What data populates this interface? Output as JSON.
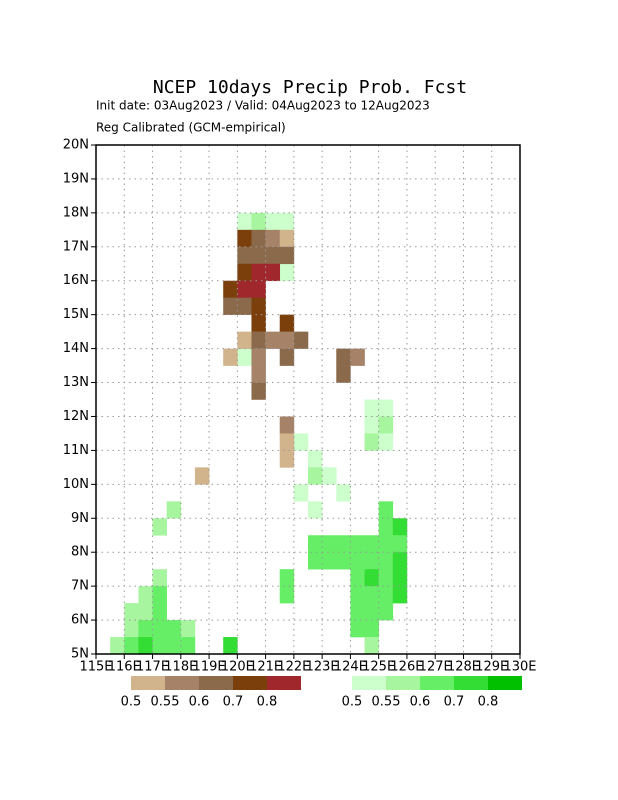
{
  "chart_data": {
    "type": "map",
    "title": "NCEP 10days Precip Prob. Fcst",
    "subtitle": "Init date: 03Aug2023 / Valid: 04Aug2023 to 12Aug2023",
    "method": "Reg Calibrated (GCM-empirical)",
    "xlim": [
      115,
      130
    ],
    "ylim": [
      5,
      20
    ],
    "grid": true,
    "xticks": [
      {
        "value": 115,
        "label": "115E"
      },
      {
        "value": 116,
        "label": "116E"
      },
      {
        "value": 117,
        "label": "117E"
      },
      {
        "value": 118,
        "label": "118E"
      },
      {
        "value": 119,
        "label": "119E"
      },
      {
        "value": 120,
        "label": "120E"
      },
      {
        "value": 121,
        "label": "121E"
      },
      {
        "value": 122,
        "label": "122E"
      },
      {
        "value": 123,
        "label": "123E"
      },
      {
        "value": 124,
        "label": "124E"
      },
      {
        "value": 125,
        "label": "125E"
      },
      {
        "value": 126,
        "label": "126E"
      },
      {
        "value": 127,
        "label": "127E"
      },
      {
        "value": 128,
        "label": "128E"
      },
      {
        "value": 129,
        "label": "129E"
      },
      {
        "value": 130,
        "label": "130E"
      }
    ],
    "yticks": [
      {
        "value": 5,
        "label": "5N"
      },
      {
        "value": 6,
        "label": "6N"
      },
      {
        "value": 7,
        "label": "7N"
      },
      {
        "value": 8,
        "label": "8N"
      },
      {
        "value": 9,
        "label": "9N"
      },
      {
        "value": 10,
        "label": "10N"
      },
      {
        "value": 11,
        "label": "11N"
      },
      {
        "value": 12,
        "label": "12N"
      },
      {
        "value": 13,
        "label": "13N"
      },
      {
        "value": 14,
        "label": "14N"
      },
      {
        "value": 15,
        "label": "15N"
      },
      {
        "value": 16,
        "label": "16N"
      },
      {
        "value": 17,
        "label": "17N"
      },
      {
        "value": 18,
        "label": "18N"
      },
      {
        "value": 19,
        "label": "19N"
      },
      {
        "value": 20,
        "label": "20N"
      }
    ],
    "dry_scale": {
      "levels": [
        0.5,
        0.55,
        0.6,
        0.7,
        0.8
      ],
      "colors": [
        "#d2b48c",
        "#a58268",
        "#8b6a4c",
        "#7b3f0c",
        "#a0282c"
      ]
    },
    "wet_scale": {
      "levels": [
        0.5,
        0.55,
        0.6,
        0.7,
        0.8
      ],
      "colors": [
        "#ccffcc",
        "#a8f5a0",
        "#66ee66",
        "#33dd33",
        "#00c000"
      ]
    },
    "dry_cells": [
      [
        120,
        17,
        0.7
      ],
      [
        120.5,
        17,
        0.6
      ],
      [
        121,
        17,
        0.55
      ],
      [
        121.5,
        17,
        0.5
      ],
      [
        120,
        16.5,
        0.6
      ],
      [
        120.5,
        16.5,
        0.6
      ],
      [
        121,
        16.5,
        0.6
      ],
      [
        121.5,
        16.5,
        0.6
      ],
      [
        120,
        16,
        0.7
      ],
      [
        120.5,
        16,
        0.8
      ],
      [
        121,
        16,
        0.8
      ],
      [
        119.5,
        15.5,
        0.7
      ],
      [
        120,
        15.5,
        0.8
      ],
      [
        120.5,
        15.5,
        0.8
      ],
      [
        119.5,
        15,
        0.6
      ],
      [
        120,
        15,
        0.6
      ],
      [
        120.5,
        15,
        0.7
      ],
      [
        120.5,
        14.5,
        0.7
      ],
      [
        121.5,
        14.5,
        0.7
      ],
      [
        120,
        14,
        0.5
      ],
      [
        120.5,
        14,
        0.6
      ],
      [
        121,
        14,
        0.55
      ],
      [
        121.5,
        14,
        0.55
      ],
      [
        122,
        14,
        0.6
      ],
      [
        119.5,
        13.5,
        0.5
      ],
      [
        120.5,
        13.5,
        0.55
      ],
      [
        121.5,
        13.5,
        0.6
      ],
      [
        123.5,
        13.5,
        0.6
      ],
      [
        124,
        13.5,
        0.55
      ],
      [
        120.5,
        13,
        0.55
      ],
      [
        123.5,
        13,
        0.6
      ],
      [
        120.5,
        12.5,
        0.6
      ],
      [
        121.5,
        11.5,
        0.55
      ],
      [
        121.5,
        11,
        0.5
      ],
      [
        121.5,
        10.5,
        0.5
      ],
      [
        118.5,
        10,
        0.5
      ]
    ],
    "wet_cells": [
      [
        120,
        17.5,
        0.5
      ],
      [
        120.5,
        17.5,
        0.55
      ],
      [
        121,
        17.5,
        0.5
      ],
      [
        121.5,
        17.5,
        0.5
      ],
      [
        121.5,
        16,
        0.5
      ],
      [
        120,
        13.5,
        0.5
      ],
      [
        124.5,
        12,
        0.5
      ],
      [
        125,
        12,
        0.5
      ],
      [
        124.5,
        11.5,
        0.5
      ],
      [
        125,
        11.5,
        0.55
      ],
      [
        124.5,
        11,
        0.55
      ],
      [
        125,
        11,
        0.5
      ],
      [
        122,
        11,
        0.5
      ],
      [
        122.5,
        10.5,
        0.5
      ],
      [
        122.5,
        10,
        0.55
      ],
      [
        122,
        9.5,
        0.5
      ],
      [
        123,
        10,
        0.5
      ],
      [
        123.5,
        9.5,
        0.5
      ],
      [
        122.5,
        9,
        0.5
      ],
      [
        117.5,
        9,
        0.55
      ],
      [
        117,
        8.5,
        0.55
      ],
      [
        125,
        9,
        0.6
      ],
      [
        125,
        8.5,
        0.6
      ],
      [
        125.5,
        8.5,
        0.7
      ],
      [
        122.5,
        8,
        0.6
      ],
      [
        123,
        8,
        0.6
      ],
      [
        123.5,
        8,
        0.6
      ],
      [
        124,
        8,
        0.6
      ],
      [
        124.5,
        8,
        0.6
      ],
      [
        125,
        8,
        0.6
      ],
      [
        125.5,
        8,
        0.6
      ],
      [
        122.5,
        7.5,
        0.6
      ],
      [
        123,
        7.5,
        0.6
      ],
      [
        123.5,
        7.5,
        0.6
      ],
      [
        124,
        7.5,
        0.6
      ],
      [
        124.5,
        7.5,
        0.6
      ],
      [
        125,
        7.5,
        0.6
      ],
      [
        125.5,
        7.5,
        0.7
      ],
      [
        121.5,
        7,
        0.6
      ],
      [
        124,
        7,
        0.6
      ],
      [
        124.5,
        7,
        0.7
      ],
      [
        125,
        7,
        0.6
      ],
      [
        125.5,
        7,
        0.7
      ],
      [
        121.5,
        6.5,
        0.6
      ],
      [
        124,
        6.5,
        0.6
      ],
      [
        124.5,
        6.5,
        0.6
      ],
      [
        125,
        6.5,
        0.6
      ],
      [
        125.5,
        6.5,
        0.7
      ],
      [
        124,
        6,
        0.6
      ],
      [
        124.5,
        6,
        0.6
      ],
      [
        125,
        6,
        0.6
      ],
      [
        124,
        5.5,
        0.6
      ],
      [
        124.5,
        5.5,
        0.6
      ],
      [
        124.5,
        5,
        0.55
      ],
      [
        117,
        7,
        0.55
      ],
      [
        116.5,
        6.5,
        0.55
      ],
      [
        117,
        6.5,
        0.6
      ],
      [
        116,
        6,
        0.55
      ],
      [
        116.5,
        6,
        0.55
      ],
      [
        117,
        6,
        0.6
      ],
      [
        116,
        5.5,
        0.55
      ],
      [
        116.5,
        5.5,
        0.6
      ],
      [
        117,
        5.5,
        0.6
      ],
      [
        117.5,
        5.5,
        0.6
      ],
      [
        118,
        5.5,
        0.55
      ],
      [
        115.5,
        5,
        0.55
      ],
      [
        116,
        5,
        0.6
      ],
      [
        116.5,
        5,
        0.7
      ],
      [
        117,
        5,
        0.6
      ],
      [
        117.5,
        5,
        0.6
      ],
      [
        118,
        5,
        0.6
      ],
      [
        119.5,
        5,
        0.7
      ]
    ]
  }
}
